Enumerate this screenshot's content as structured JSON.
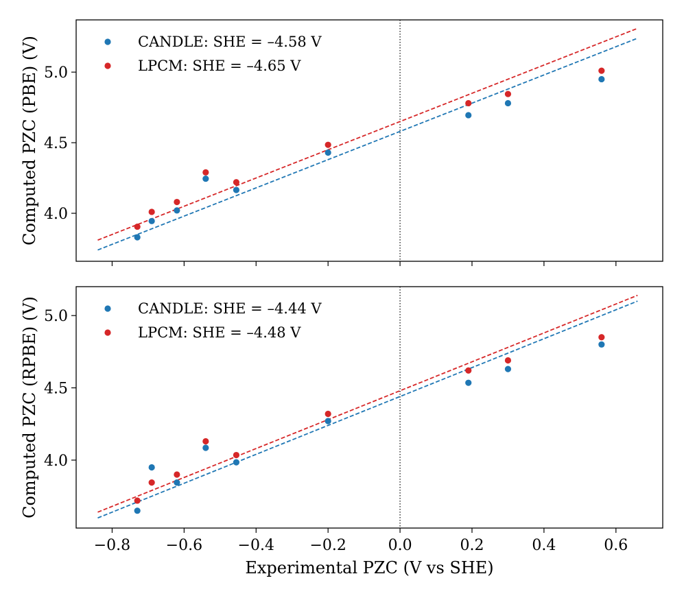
{
  "colors": {
    "candle": "#1f77b4",
    "lpcm": "#d62728",
    "axis": "#000000",
    "zero_line": "#000000"
  },
  "chart_data": [
    {
      "type": "scatter",
      "panel": "top",
      "xlabel": "",
      "ylabel": "Computed PZC (PBE) (V)",
      "xlim": [
        -0.9,
        0.73
      ],
      "ylim": [
        3.66,
        5.37
      ],
      "xticks": [
        -0.8,
        -0.6,
        -0.4,
        -0.2,
        0.0,
        0.2,
        0.4,
        0.6
      ],
      "yticks": [
        4.0,
        4.5,
        5.0
      ],
      "ytick_labels": [
        "4.0",
        "4.5",
        "5.0"
      ],
      "show_xtick_labels": false,
      "vline_x": 0.0,
      "legend_position": "top-left",
      "series": [
        {
          "name": "CANDLE: SHE = –4.58 V",
          "color_key": "candle",
          "x": [
            -0.73,
            -0.69,
            -0.62,
            -0.54,
            -0.455,
            -0.2,
            0.19,
            0.3,
            0.56
          ],
          "y": [
            3.83,
            3.945,
            4.02,
            4.245,
            4.165,
            4.43,
            4.695,
            4.78,
            4.95
          ],
          "fit_line": {
            "slope": 1.0,
            "intercept": 4.58,
            "x_range": [
              -0.84,
              0.66
            ]
          }
        },
        {
          "name": "LPCM: SHE = –4.65 V",
          "color_key": "lpcm",
          "x": [
            -0.73,
            -0.69,
            -0.62,
            -0.54,
            -0.455,
            -0.2,
            0.19,
            0.3,
            0.56
          ],
          "y": [
            3.905,
            4.01,
            4.08,
            4.29,
            4.22,
            4.485,
            4.78,
            4.845,
            5.01
          ],
          "fit_line": {
            "slope": 1.0,
            "intercept": 4.65,
            "x_range": [
              -0.84,
              0.66
            ]
          }
        }
      ]
    },
    {
      "type": "scatter",
      "panel": "bottom",
      "xlabel": "Experimental PZC (V vs SHE)",
      "ylabel": "Computed PZC (RPBE) (V)",
      "xlim": [
        -0.9,
        0.73
      ],
      "ylim": [
        3.53,
        5.2
      ],
      "xticks": [
        -0.8,
        -0.6,
        -0.4,
        -0.2,
        0.0,
        0.2,
        0.4,
        0.6
      ],
      "xtick_labels": [
        "−0.8",
        "−0.6",
        "−0.4",
        "−0.2",
        "0.0",
        "0.2",
        "0.4",
        "0.6"
      ],
      "yticks": [
        4.0,
        4.5,
        5.0
      ],
      "ytick_labels": [
        "4.0",
        "4.5",
        "5.0"
      ],
      "show_xtick_labels": true,
      "vline_x": 0.0,
      "legend_position": "top-left",
      "series": [
        {
          "name": "CANDLE: SHE = –4.44 V",
          "color_key": "candle",
          "x": [
            -0.73,
            -0.69,
            -0.62,
            -0.54,
            -0.455,
            -0.2,
            0.19,
            0.3,
            0.56
          ],
          "y": [
            3.65,
            3.95,
            3.845,
            4.085,
            3.985,
            4.27,
            4.535,
            4.63,
            4.8
          ],
          "fit_line": {
            "slope": 1.0,
            "intercept": 4.44,
            "x_range": [
              -0.84,
              0.66
            ]
          }
        },
        {
          "name": "LPCM: SHE = –4.48 V",
          "color_key": "lpcm",
          "x": [
            -0.73,
            -0.69,
            -0.62,
            -0.54,
            -0.455,
            -0.2,
            0.19,
            0.3,
            0.56
          ],
          "y": [
            3.72,
            3.845,
            3.9,
            4.13,
            4.035,
            4.32,
            4.62,
            4.69,
            4.85
          ],
          "fit_line": {
            "slope": 1.0,
            "intercept": 4.48,
            "x_range": [
              -0.84,
              0.66
            ]
          }
        }
      ]
    }
  ]
}
